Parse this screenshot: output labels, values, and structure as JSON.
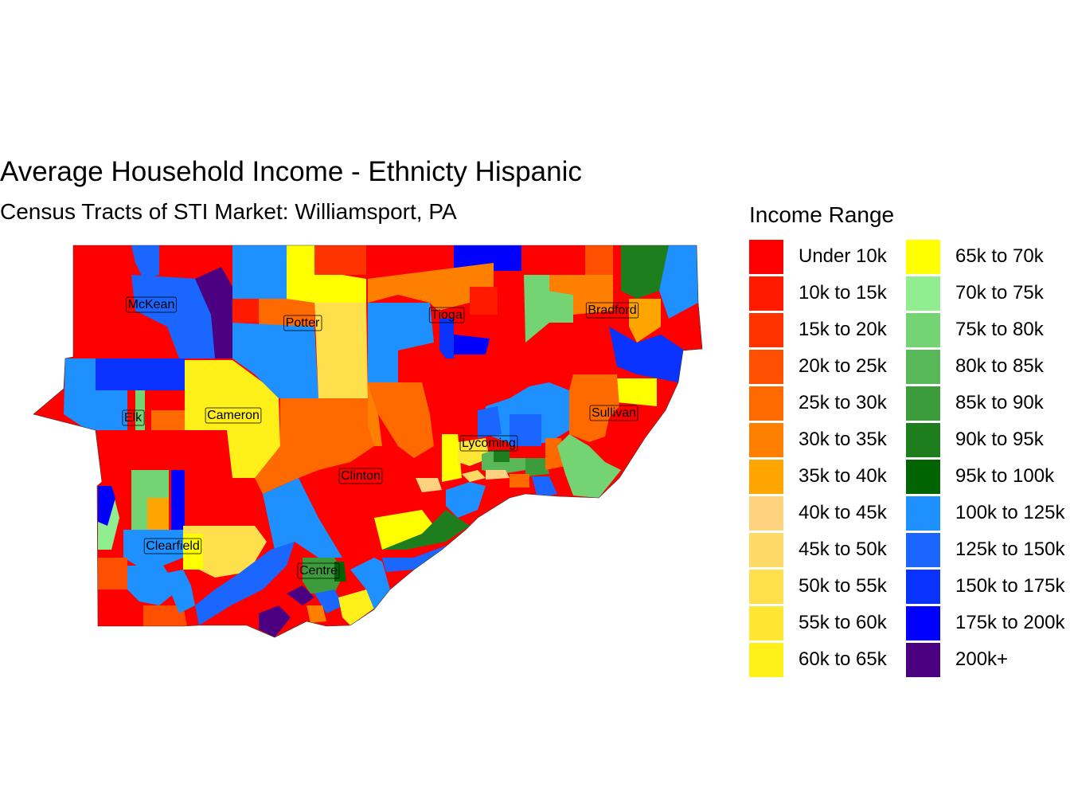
{
  "map": {
    "title": "Average Household Income - Ethnicty Hispanic",
    "subtitle": "Census Tracts of STI Market: Williamsport, PA",
    "county_labels": [
      "McKean",
      "Potter",
      "Tioga",
      "Bradford",
      "Elk",
      "Cameron",
      "Sullivan",
      "Lycoming",
      "Clinton",
      "Clearfield",
      "Centre"
    ]
  },
  "legend": {
    "title": "Income Range",
    "items": [
      {
        "label": "Under 10k",
        "color": "#FF0000"
      },
      {
        "label": "10k to 15k",
        "color": "#FF1A00"
      },
      {
        "label": "15k to 20k",
        "color": "#FF3300"
      },
      {
        "label": "20k to 25k",
        "color": "#FF5000"
      },
      {
        "label": "25k to 30k",
        "color": "#FF6A00"
      },
      {
        "label": "30k to 35k",
        "color": "#FF8000"
      },
      {
        "label": "35k to 40k",
        "color": "#FFA500"
      },
      {
        "label": "40k to 45k",
        "color": "#FFD27F"
      },
      {
        "label": "45k to 50k",
        "color": "#FFD966"
      },
      {
        "label": "50k to 55k",
        "color": "#FFE04C"
      },
      {
        "label": "55k to 60k",
        "color": "#FFE633"
      },
      {
        "label": "60k to 65k",
        "color": "#FFF01A"
      },
      {
        "label": "65k to 70k",
        "color": "#FFFF00"
      },
      {
        "label": "70k to 75k",
        "color": "#90EE90"
      },
      {
        "label": "75k to 80k",
        "color": "#74D474"
      },
      {
        "label": "80k to 85k",
        "color": "#58B858"
      },
      {
        "label": "85k to 90k",
        "color": "#3C9C3C"
      },
      {
        "label": "90k to 95k",
        "color": "#1E7E1E"
      },
      {
        "label": "95k to 100k",
        "color": "#006400"
      },
      {
        "label": "100k to 125k",
        "color": "#1E90FF"
      },
      {
        "label": "125k to 150k",
        "color": "#1A66FF"
      },
      {
        "label": "150k to 175k",
        "color": "#0A33FF"
      },
      {
        "label": "175k to 200k",
        "color": "#0000FF"
      },
      {
        "label": "200k+",
        "color": "#4B0082"
      }
    ]
  }
}
